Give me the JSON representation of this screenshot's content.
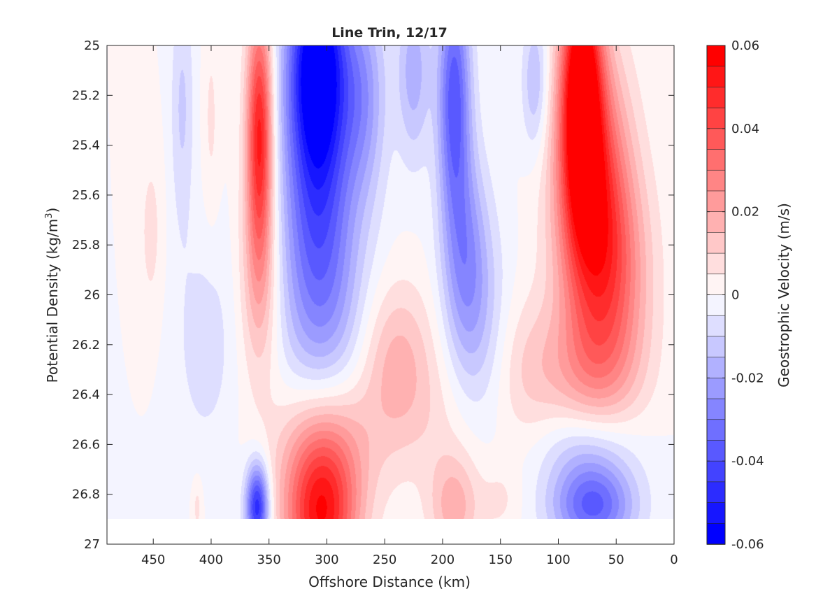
{
  "chart_data": {
    "type": "heatmap",
    "title": "Line Trin, 12/17",
    "xlabel": "Offshore Distance (km)",
    "ylabel_main": "Potential Density (kg/m",
    "ylabel_sup": "3",
    "ylabel_close": ")",
    "colorbar_label": "Geostrophic Velocity (m/s)",
    "xlim": [
      490,
      0
    ],
    "ylim": [
      25,
      27
    ],
    "x_reversed": true,
    "y_reversed": true,
    "x_ticks": [
      450,
      400,
      350,
      300,
      250,
      200,
      150,
      100,
      50,
      0
    ],
    "y_ticks": [
      "25",
      "25.2",
      "25.4",
      "25.6",
      "25.8",
      "26",
      "26.2",
      "26.4",
      "26.6",
      "26.8",
      "27"
    ],
    "colorbar_range": [
      -0.06,
      0.06
    ],
    "colorbar_ticks": [
      "-0.06",
      "-0.04",
      "-0.02",
      "0",
      "0.02",
      "0.04",
      "0.06"
    ],
    "contour_levels": [
      -0.06,
      -0.055,
      -0.05,
      -0.045,
      -0.04,
      -0.035,
      -0.03,
      -0.025,
      -0.02,
      -0.015,
      -0.01,
      -0.005,
      0,
      0.005,
      0.01,
      0.015,
      0.02,
      0.025,
      0.03,
      0.035,
      0.04,
      0.045,
      0.05,
      0.055,
      0.06
    ],
    "colormap": {
      "negative": "#0000ff",
      "zero": "#ffffff",
      "positive": "#ff0000"
    },
    "data_extent": {
      "density_bottom": 26.9
    },
    "grid": false,
    "features": [
      {
        "x": 452,
        "y": 25.75,
        "sx": 7,
        "sy": 0.25,
        "v": 0.007
      },
      {
        "x": 425,
        "y": 25.25,
        "sx": 7,
        "sy": 0.35,
        "v": -0.011
      },
      {
        "x": 400,
        "y": 25.3,
        "sx": 5,
        "sy": 0.3,
        "v": 0.006
      },
      {
        "x": 405,
        "y": 26.2,
        "sx": 18,
        "sy": 0.3,
        "v": -0.008
      },
      {
        "x": 358,
        "y": 25.35,
        "sx": 8,
        "sy": 0.35,
        "v": 0.052
      },
      {
        "x": 358,
        "y": 25.95,
        "sx": 12,
        "sy": 0.3,
        "v": 0.016
      },
      {
        "x": 308,
        "y": 25.05,
        "sx": 18,
        "sy": 0.3,
        "v": -0.058
      },
      {
        "x": 308,
        "y": 25.6,
        "sx": 22,
        "sy": 0.4,
        "v": -0.035
      },
      {
        "x": 300,
        "y": 26.1,
        "sx": 28,
        "sy": 0.3,
        "v": -0.012
      },
      {
        "x": 268,
        "y": 25.2,
        "sx": 14,
        "sy": 0.3,
        "v": -0.02
      },
      {
        "x": 225,
        "y": 25.1,
        "sx": 10,
        "sy": 0.25,
        "v": -0.018
      },
      {
        "x": 190,
        "y": 25.2,
        "sx": 10,
        "sy": 0.35,
        "v": -0.038
      },
      {
        "x": 180,
        "y": 25.85,
        "sx": 14,
        "sy": 0.3,
        "v": -0.022
      },
      {
        "x": 165,
        "y": 26.15,
        "sx": 18,
        "sy": 0.3,
        "v": -0.01
      },
      {
        "x": 240,
        "y": 26.25,
        "sx": 22,
        "sy": 0.22,
        "v": 0.016
      },
      {
        "x": 215,
        "y": 26.5,
        "sx": 35,
        "sy": 0.2,
        "v": 0.006
      },
      {
        "x": 120,
        "y": 25.15,
        "sx": 8,
        "sy": 0.2,
        "v": -0.016
      },
      {
        "x": 80,
        "y": 25.15,
        "sx": 12,
        "sy": 0.35,
        "v": 0.06
      },
      {
        "x": 72,
        "y": 25.55,
        "sx": 22,
        "sy": 0.38,
        "v": 0.043
      },
      {
        "x": 55,
        "y": 25.95,
        "sx": 24,
        "sy": 0.32,
        "v": 0.028
      },
      {
        "x": 75,
        "y": 26.3,
        "sx": 30,
        "sy": 0.18,
        "v": 0.014
      },
      {
        "x": 128,
        "y": 26.3,
        "sx": 22,
        "sy": 0.22,
        "v": 0.009
      },
      {
        "x": 360,
        "y": 26.85,
        "sx": 7,
        "sy": 0.12,
        "v": -0.05
      },
      {
        "x": 305,
        "y": 26.9,
        "sx": 22,
        "sy": 0.22,
        "v": 0.05
      },
      {
        "x": 300,
        "y": 26.6,
        "sx": 30,
        "sy": 0.2,
        "v": 0.018
      },
      {
        "x": 190,
        "y": 26.85,
        "sx": 15,
        "sy": 0.15,
        "v": 0.018
      },
      {
        "x": 150,
        "y": 26.82,
        "sx": 12,
        "sy": 0.1,
        "v": 0.006
      },
      {
        "x": 70,
        "y": 26.85,
        "sx": 25,
        "sy": 0.12,
        "v": -0.036
      },
      {
        "x": 75,
        "y": 26.62,
        "sx": 30,
        "sy": 0.12,
        "v": -0.013
      },
      {
        "x": 412,
        "y": 26.85,
        "sx": 3,
        "sy": 0.08,
        "v": 0.007
      }
    ]
  }
}
